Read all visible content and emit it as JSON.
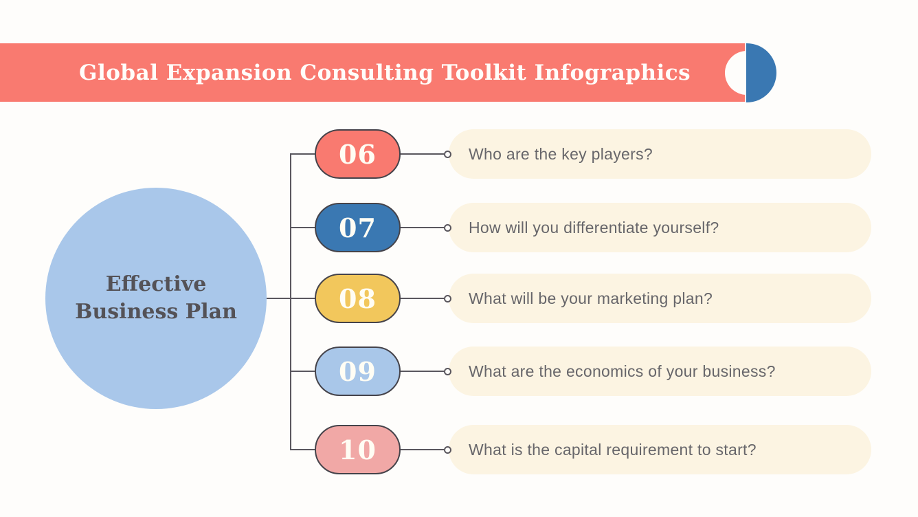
{
  "slide": {
    "title": "Global Expansion Consulting Toolkit Infographics"
  },
  "hub": {
    "label": "Effective\nBusiness Plan"
  },
  "items": [
    {
      "number": "06",
      "question": "Who are the key players?",
      "color": "#f97a70"
    },
    {
      "number": "07",
      "question": "How will you differentiate yourself?",
      "color": "#3a78b2"
    },
    {
      "number": "08",
      "question": "What will be your marketing plan?",
      "color": "#f2c75c"
    },
    {
      "number": "09",
      "question": "What are the economics of your business?",
      "color": "#a9c7e9"
    },
    {
      "number": "10",
      "question": "What is the capital requirement to start?",
      "color": "#f1a8a6"
    }
  ],
  "colors": {
    "banner": "#f97a70",
    "banner_accent_blue": "#3a78b2",
    "hub_circle": "#a9c7ea",
    "card_background": "#fcf4e2",
    "connector": "#5a575e"
  }
}
